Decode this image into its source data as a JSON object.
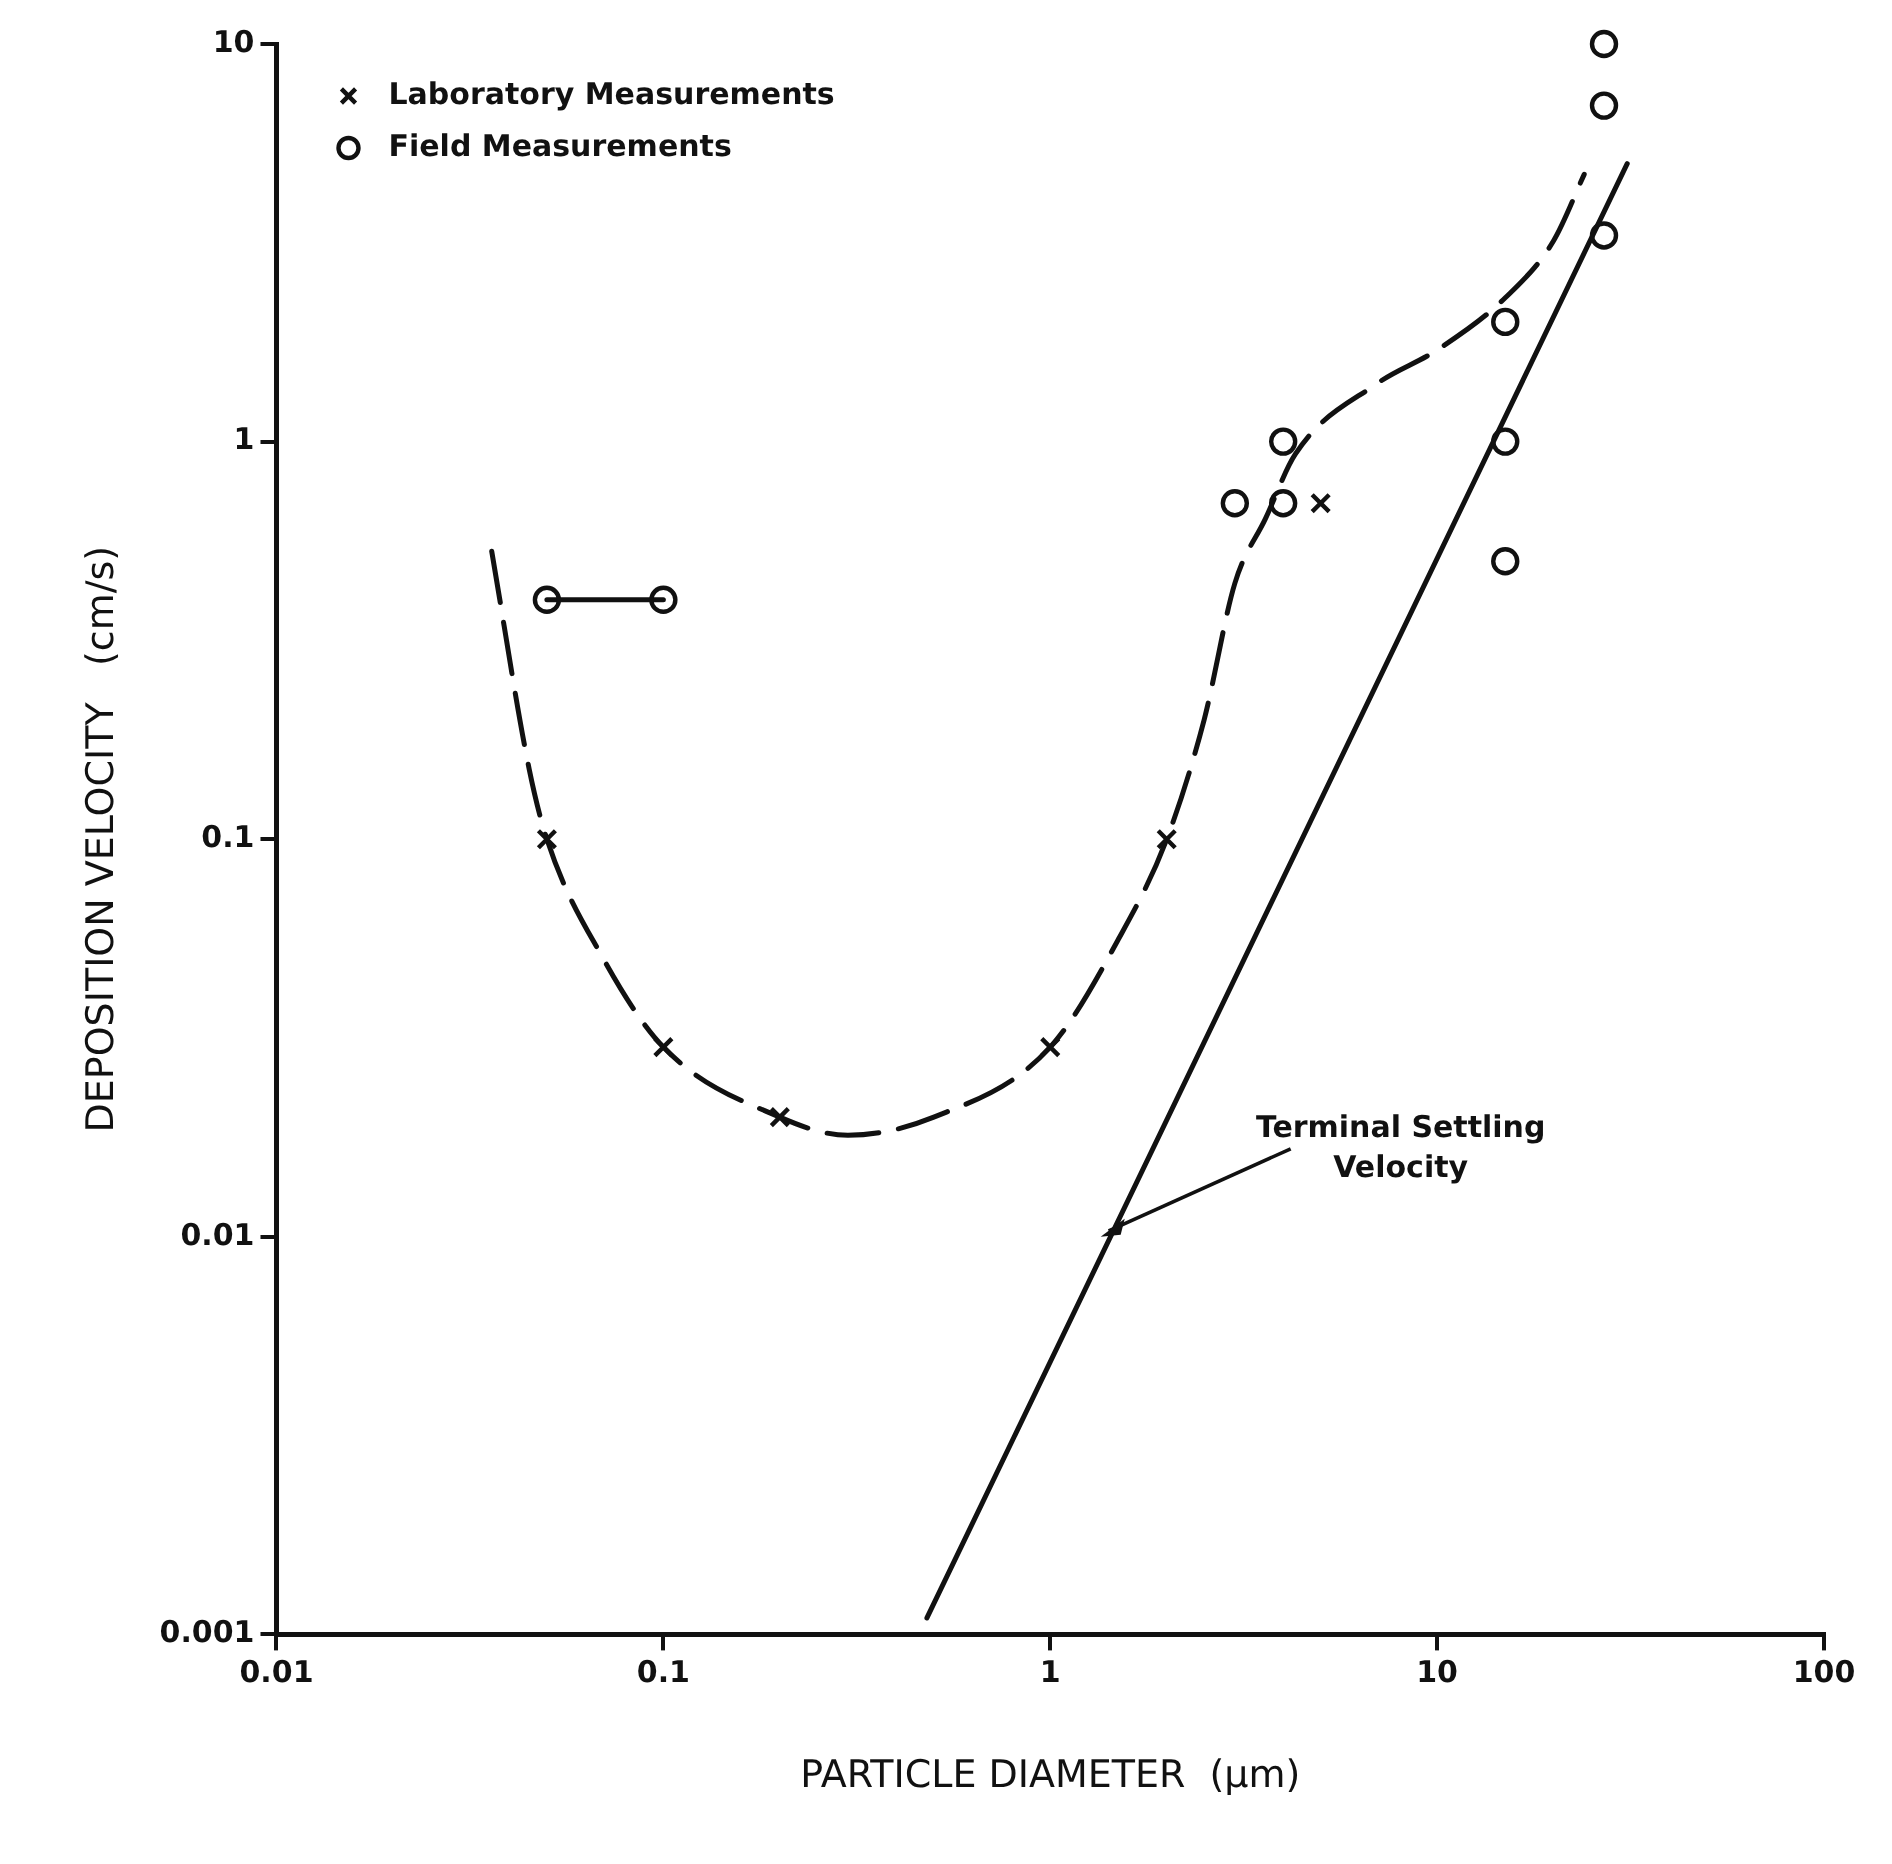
{
  "chart_data": {
    "type": "scatter",
    "xlabel": "PARTICLE DIAMETER  (μm)",
    "ylabel": "DEPOSITION VELOCITY   (cm/s)",
    "log": "xy",
    "xlim": [
      0.01,
      100
    ],
    "ylim": [
      0.001,
      10
    ],
    "xticks": [
      0.01,
      0.1,
      1,
      10,
      100
    ],
    "yticks": [
      0.001,
      0.01,
      0.1,
      1,
      10
    ],
    "grid": false,
    "legend": "top left",
    "annotations": [
      {
        "text": "Terminal Settling Velocity",
        "x": 1.35,
        "y": 0.01
      }
    ],
    "series": [
      {
        "name": "Laboratory Measurements",
        "marker": "cross",
        "color": "#111111",
        "x": [
          0.05,
          0.1,
          0.2,
          1,
          2,
          5
        ],
        "values": [
          0.1,
          0.03,
          0.02,
          0.03,
          0.1,
          0.7
        ]
      },
      {
        "name": "Field Measurements",
        "marker": "circle",
        "color": "#111111",
        "x": [
          0.05,
          0.1,
          3,
          4,
          4,
          15,
          15,
          15,
          27,
          27,
          27
        ],
        "values": [
          0.4,
          0.4,
          0.7,
          0.7,
          1,
          2,
          1,
          0.5,
          10,
          7,
          3.3
        ]
      },
      {
        "type": "line",
        "marker": "none",
        "line_style": "solid",
        "color": "#111111",
        "x": [
          0.05,
          0.1
        ],
        "values": [
          0.4,
          0.4
        ]
      },
      {
        "type": "line",
        "marker": "none",
        "line_style": "dashed",
        "color": "#111111",
        "x": [
          0.036,
          0.045,
          0.05,
          0.07,
          0.1,
          0.2,
          0.3,
          0.5,
          1,
          1.5,
          2,
          2.5,
          3,
          3.6,
          4.3,
          7,
          10,
          15,
          20,
          24
        ],
        "values": [
          0.53,
          0.15,
          0.1,
          0.05,
          0.03,
          0.02,
          0.018,
          0.02,
          0.03,
          0.056,
          0.1,
          0.2,
          0.44,
          0.64,
          0.93,
          1.4,
          1.7,
          2.3,
          3.2,
          4.7
        ]
      },
      {
        "type": "line",
        "marker": "none",
        "line_style": "solid",
        "color": "#111111",
        "x": [
          0.48,
          31
        ],
        "values": [
          0.0011,
          5
        ]
      }
    ]
  }
}
